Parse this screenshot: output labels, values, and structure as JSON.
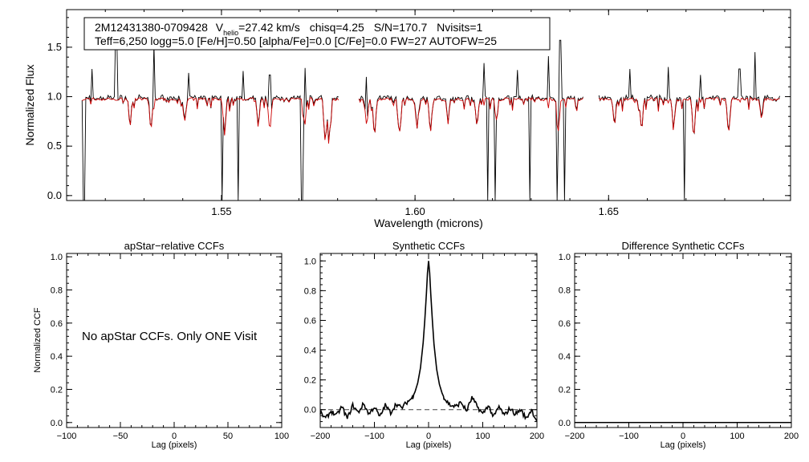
{
  "info_box": {
    "line1": {
      "star": "2M12431380-0709428",
      "v_label": "V",
      "v_sub": "helio",
      "v_rest": "=27.42 km/s",
      "chisq": "chisq=4.25",
      "snr": "S/N=170.7",
      "nvisits": "Nvisits=1"
    },
    "line2": "Teff=6,250 logg=5.0 [Fe/H]=0.50 [alpha/Fe]=0.0 [C/Fe]=0.0 FW=27 AUTOFW=25"
  },
  "chart_data": [
    {
      "id": "spectrum",
      "type": "line",
      "title": "",
      "xlabel": "Wavelength (microns)",
      "ylabel": "Normalized Flux",
      "xlim": [
        1.51,
        1.697
      ],
      "ylim": [
        -0.05,
        1.88
      ],
      "x_ticks": [
        1.55,
        1.6,
        1.65
      ],
      "x_tick_labels": [
        "1.55",
        "1.60",
        "1.65"
      ],
      "y_ticks": [
        0.0,
        0.5,
        1.0,
        1.5
      ],
      "y_tick_labels": [
        "0.0",
        "0.5",
        "1.0",
        "1.5"
      ],
      "chip_ranges": [
        [
          1.514,
          1.5805
        ],
        [
          1.5855,
          1.6435
        ],
        [
          1.6475,
          1.6945
        ]
      ],
      "series": [
        {
          "name": "observed",
          "color": "#000000",
          "continuum": 0.985,
          "emission_spikes": [
            [
              1.5228,
              1.62
            ],
            [
              1.5325,
              1.53
            ],
            [
              1.5165,
              1.28
            ],
            [
              1.5415,
              1.24
            ],
            [
              1.5555,
              1.26
            ],
            [
              1.5625,
              1.22
            ],
            [
              1.5715,
              1.29
            ],
            [
              1.5875,
              1.2
            ],
            [
              1.6178,
              1.34
            ],
            [
              1.6265,
              1.27
            ],
            [
              1.6345,
              1.41
            ],
            [
              1.6375,
              1.57
            ],
            [
              1.6555,
              1.28
            ],
            [
              1.6655,
              1.3
            ],
            [
              1.6738,
              1.22
            ],
            [
              1.6838,
              1.28
            ],
            [
              1.6878,
              1.45
            ]
          ],
          "bad_pixel_drops": [
            [
              1.5145,
              -0.05
            ],
            [
              1.5502,
              -0.05
            ],
            [
              1.5542,
              -0.05
            ],
            [
              1.5708,
              -0.05
            ],
            [
              1.6188,
              -0.05
            ],
            [
              1.6206,
              -0.05
            ],
            [
              1.6297,
              -0.05
            ],
            [
              1.6368,
              -0.05
            ],
            [
              1.6385,
              -0.05
            ],
            [
              1.6695,
              -0.05
            ]
          ]
        },
        {
          "name": "synthetic model",
          "color": "#cc0000",
          "continuum": 0.975,
          "absorption_lines": [
            [
              1.5265,
              0.81
            ],
            [
              1.5318,
              0.68
            ],
            [
              1.5405,
              0.74
            ],
            [
              1.5508,
              0.62
            ],
            [
              1.5595,
              0.7
            ],
            [
              1.5625,
              0.66
            ],
            [
              1.5715,
              0.72
            ],
            [
              1.5768,
              0.57
            ],
            [
              1.5778,
              0.6
            ],
            [
              1.5875,
              0.73
            ],
            [
              1.5895,
              0.62
            ],
            [
              1.596,
              0.65
            ],
            [
              1.6005,
              0.69
            ],
            [
              1.604,
              0.64
            ],
            [
              1.6085,
              0.76
            ],
            [
              1.616,
              0.71
            ],
            [
              1.621,
              0.78
            ],
            [
              1.637,
              0.66
            ],
            [
              1.6445,
              0.82
            ],
            [
              1.6515,
              0.72
            ],
            [
              1.6585,
              0.68
            ],
            [
              1.6668,
              0.73
            ],
            [
              1.672,
              0.6
            ],
            [
              1.681,
              0.64
            ],
            [
              1.6895,
              0.77
            ]
          ]
        }
      ]
    },
    {
      "id": "apstar_ccf",
      "type": "line",
      "title": "apStar−relative CCFs",
      "xlabel": "Lag (pixels)",
      "ylabel": "Normalized CCF",
      "xlim": [
        -100,
        100
      ],
      "ylim": [
        -0.03,
        1.02
      ],
      "x_ticks": [
        -100,
        -50,
        0,
        50,
        100
      ],
      "x_tick_labels": [
        "−100",
        "−50",
        "0",
        "50",
        "100"
      ],
      "y_ticks": [
        0.0,
        0.2,
        0.4,
        0.6,
        0.8,
        1.0
      ],
      "y_tick_labels": [
        "0.0",
        "0.2",
        "0.4",
        "0.6",
        "0.8",
        "1.0"
      ],
      "annotation": "No apStar CCFs.  Only ONE Visit",
      "series": []
    },
    {
      "id": "synthetic_ccf",
      "type": "line",
      "title": "Synthetic CCFs",
      "xlabel": "Lag (pixels)",
      "ylabel": "",
      "xlim": [
        -200,
        200
      ],
      "ylim": [
        -0.12,
        1.05
      ],
      "x_ticks": [
        -200,
        -100,
        0,
        100,
        200
      ],
      "x_tick_labels": [
        "−200",
        "−100",
        "0",
        "100",
        "200"
      ],
      "y_ticks": [
        0.0,
        0.2,
        0.4,
        0.6,
        0.8,
        1.0
      ],
      "y_tick_labels": [
        "0.0",
        "0.2",
        "0.4",
        "0.6",
        "0.8",
        "1.0"
      ],
      "zero_line": 0.0,
      "series": [
        {
          "name": "synthetic CCF",
          "color": "#000000",
          "x": [
            -200,
            -190,
            -180,
            -170,
            -160,
            -150,
            -140,
            -130,
            -120,
            -110,
            -100,
            -90,
            -80,
            -70,
            -60,
            -50,
            -40,
            -30,
            -25,
            -20,
            -15,
            -10,
            -7,
            -4,
            -2,
            0,
            2,
            4,
            7,
            10,
            15,
            20,
            25,
            30,
            40,
            50,
            60,
            70,
            80,
            90,
            100,
            110,
            120,
            130,
            140,
            150,
            160,
            170,
            180,
            190,
            200
          ],
          "y": [
            -0.02,
            -0.06,
            -0.01,
            -0.04,
            0.02,
            -0.06,
            0.03,
            -0.02,
            0.04,
            -0.03,
            0.02,
            -0.05,
            0.03,
            -0.02,
            0.04,
            0.01,
            0.05,
            0.08,
            0.12,
            0.18,
            0.28,
            0.45,
            0.6,
            0.78,
            0.92,
            1.0,
            0.92,
            0.78,
            0.6,
            0.44,
            0.27,
            0.17,
            0.11,
            0.07,
            0.03,
            0.02,
            0.05,
            -0.01,
            0.08,
            0.02,
            -0.03,
            0.03,
            -0.05,
            0.02,
            -0.04,
            0.01,
            -0.03,
            0.0,
            -0.06,
            0.0,
            -0.08
          ]
        }
      ]
    },
    {
      "id": "difference_ccf",
      "type": "line",
      "title": "Difference Synthetic CCFs",
      "xlabel": "Lag (pixels)",
      "ylabel": "",
      "xlim": [
        -200,
        200
      ],
      "ylim": [
        -0.03,
        1.02
      ],
      "x_ticks": [
        -200,
        -100,
        0,
        100,
        200
      ],
      "x_tick_labels": [
        "−200",
        "−100",
        "0",
        "100",
        "200"
      ],
      "y_ticks": [
        0.0,
        0.2,
        0.4,
        0.6,
        0.8,
        1.0
      ],
      "y_tick_labels": [
        "0.0",
        "0.2",
        "0.4",
        "0.6",
        "0.8",
        "1.0"
      ],
      "baseline_value": 0.0,
      "series": []
    }
  ]
}
